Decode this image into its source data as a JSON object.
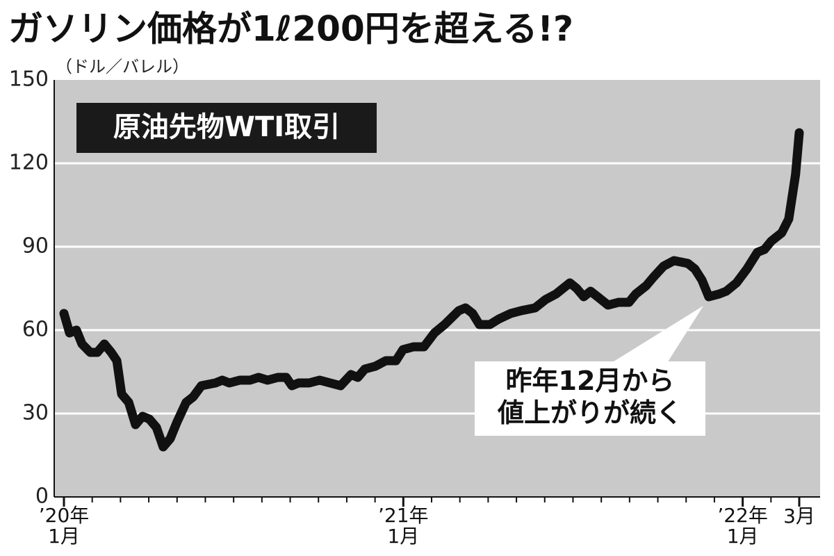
{
  "chart_data": {
    "type": "line",
    "title": "ガソリン価格が1ℓ200円を超える!?",
    "y_label": "（ドル／バレル）",
    "inset_label": "原油先物WTI取引",
    "annotation": "昨年12月から\n値上がりが続く",
    "x": [
      0,
      0.2,
      0.44,
      0.64,
      0.93,
      1.18,
      1.43,
      1.67,
      1.87,
      2.04,
      2.29,
      2.53,
      2.78,
      3.02,
      3.27,
      3.51,
      3.76,
      4.0,
      4.32,
      4.57,
      4.86,
      5.36,
      5.6,
      5.85,
      6.22,
      6.58,
      6.88,
      7.2,
      7.57,
      7.86,
      8.06,
      8.3,
      8.67,
      9.04,
      9.41,
      9.78,
      10.15,
      10.39,
      10.64,
      11.01,
      11.38,
      11.74,
      11.99,
      12.36,
      12.73,
      13.1,
      13.46,
      13.96,
      14.2,
      14.45,
      14.69,
      15.06,
      15.38,
      15.8,
      16.17,
      16.66,
      17.03,
      17.4,
      17.89,
      18.13,
      18.38,
      18.62,
      18.87,
      19.24,
      19.61,
      19.98,
      20.22,
      20.59,
      20.84,
      21.2,
      21.57,
      22.06,
      22.31,
      22.56,
      22.8,
      23.17,
      23.42,
      23.78,
      24.15,
      24.52,
      24.77,
      25.01,
      25.38,
      25.63,
      25.87,
      26
    ],
    "values": [
      66,
      59,
      60,
      55,
      52,
      52,
      55,
      52,
      49,
      37,
      34,
      26,
      29,
      28,
      25,
      18,
      21,
      27,
      34,
      36,
      40,
      41,
      42,
      41,
      42,
      42,
      43,
      42,
      43,
      43,
      40,
      41,
      41,
      42,
      41,
      40,
      44,
      43,
      46,
      47,
      49,
      49,
      53,
      54,
      54,
      59,
      62,
      67,
      68,
      66,
      62,
      62,
      64,
      66,
      67,
      68,
      71,
      73,
      77,
      75,
      72,
      74,
      72,
      69,
      70,
      70,
      73,
      76,
      79,
      83,
      85,
      84,
      82,
      78,
      72,
      73,
      74,
      77,
      82,
      88,
      89,
      92,
      95,
      100,
      116,
      131
    ],
    "color": "#111111",
    "xlim": [
      0,
      26
    ],
    "xticks": [
      {
        "value": 0,
        "label": "’20年\n1月"
      },
      {
        "value": 12,
        "label": "’21年\n1月"
      },
      {
        "value": 24,
        "label": "’22年\n1月"
      },
      {
        "value": 26,
        "label": "3月"
      }
    ],
    "minor_xticks": [
      1,
      2,
      3,
      4,
      5,
      6,
      7,
      8,
      9,
      10,
      11,
      13,
      14,
      15,
      16,
      17,
      18,
      19,
      20,
      21,
      22,
      23,
      25
    ],
    "ylim": [
      0,
      150
    ],
    "yticks": [
      0,
      30,
      60,
      90,
      120,
      150
    ],
    "grid": true
  }
}
